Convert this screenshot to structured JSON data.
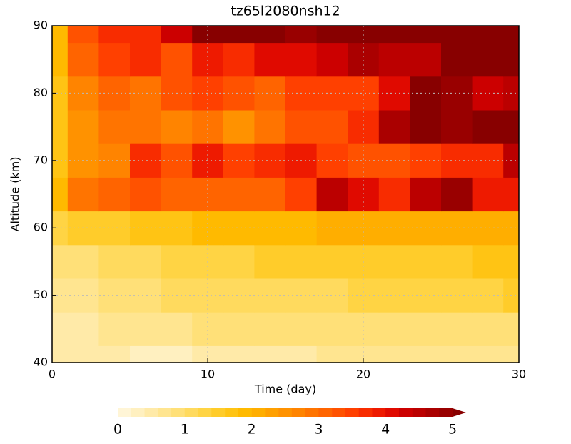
{
  "chart_data": {
    "type": "heatmap",
    "title": "tz65l2080nsh12",
    "x_label": "Time (day)",
    "y_label": "Altitude (km)",
    "xlim": [
      0,
      30
    ],
    "ylim": [
      40,
      90
    ],
    "xticks": [
      0,
      10,
      20,
      30
    ],
    "yticks": [
      40,
      50,
      60,
      70,
      80,
      90
    ],
    "grid": true,
    "x": [
      0,
      2,
      4,
      6,
      8,
      10,
      12,
      14,
      16,
      18,
      20,
      22,
      24,
      26,
      28,
      30
    ],
    "y": [
      40,
      45,
      50,
      55,
      60,
      65,
      70,
      75,
      80,
      85,
      90
    ],
    "z": [
      [
        0.4,
        0.4,
        0.5,
        0.3,
        0.3,
        0.5,
        0.5,
        0.5,
        0.5,
        0.6,
        0.6,
        0.6,
        0.6,
        0.7,
        0.6,
        0.6
      ],
      [
        0.5,
        0.5,
        0.6,
        0.6,
        0.7,
        0.8,
        0.8,
        0.8,
        0.8,
        0.8,
        0.9,
        0.9,
        0.9,
        0.9,
        0.9,
        0.9
      ],
      [
        0.6,
        0.7,
        0.8,
        0.9,
        1.0,
        1.0,
        1.1,
        1.1,
        1.1,
        1.1,
        1.2,
        1.2,
        1.2,
        1.3,
        1.3,
        1.4
      ],
      [
        0.8,
        0.9,
        1.0,
        1.1,
        1.2,
        1.3,
        1.3,
        1.4,
        1.4,
        1.4,
        1.5,
        1.5,
        1.5,
        1.4,
        1.6,
        1.7
      ],
      [
        1.2,
        1.4,
        1.5,
        1.6,
        1.7,
        1.8,
        1.8,
        1.8,
        1.9,
        2.0,
        2.0,
        2.0,
        2.0,
        2.0,
        2.0,
        2.1
      ],
      [
        1.8,
        2.8,
        3.0,
        3.2,
        3.0,
        3.0,
        3.0,
        3.0,
        3.5,
        4.5,
        4.0,
        3.6,
        4.5,
        4.8,
        3.8,
        3.8
      ],
      [
        1.6,
        2.4,
        2.6,
        3.6,
        3.2,
        3.8,
        3.4,
        3.6,
        3.8,
        3.4,
        3.2,
        3.2,
        3.4,
        3.6,
        3.6,
        4.4
      ],
      [
        1.6,
        2.4,
        2.8,
        2.8,
        2.6,
        2.8,
        2.4,
        2.8,
        3.2,
        3.2,
        3.6,
        4.6,
        5.2,
        4.8,
        5.2,
        5.2
      ],
      [
        1.6,
        2.6,
        3.0,
        2.8,
        3.2,
        3.4,
        3.2,
        3.0,
        3.4,
        3.4,
        3.4,
        4.0,
        5.2,
        4.8,
        4.2,
        4.4
      ],
      [
        1.8,
        3.0,
        3.4,
        3.6,
        3.2,
        3.8,
        3.6,
        4.0,
        4.0,
        4.2,
        4.6,
        4.4,
        4.4,
        5.0,
        5.2,
        5.4
      ],
      [
        1.8,
        3.2,
        3.6,
        3.6,
        4.2,
        5.2,
        5.2,
        5.2,
        4.8,
        5.4,
        5.4,
        5.4,
        5.2,
        5.4,
        5.4,
        5.4
      ]
    ],
    "levels": [
      0,
      0.2,
      0.4,
      0.6,
      0.8,
      1,
      1.2,
      1.4,
      1.6,
      1.8,
      2,
      2.2,
      2.4,
      2.6,
      2.8,
      3,
      3.2,
      3.4,
      3.6,
      3.8,
      4,
      4.2,
      4.4,
      4.6,
      4.8,
      5
    ],
    "colors": [
      "#fff5d6",
      "#fff0c0",
      "#ffeaa8",
      "#ffe590",
      "#ffe078",
      "#ffda5e",
      "#ffd444",
      "#ffcc2a",
      "#ffc414",
      "#ffba00",
      "#ffae00",
      "#ffa000",
      "#ff9200",
      "#ff8400",
      "#ff7400",
      "#ff6400",
      "#ff5200",
      "#ff4000",
      "#f82c00",
      "#ee1a00",
      "#e00a00",
      "#cc0000",
      "#bb0000",
      "#aa0000",
      "#990000",
      "#880000"
    ],
    "colorbar_ticks": [
      0,
      1,
      2,
      3,
      4,
      5
    ]
  }
}
